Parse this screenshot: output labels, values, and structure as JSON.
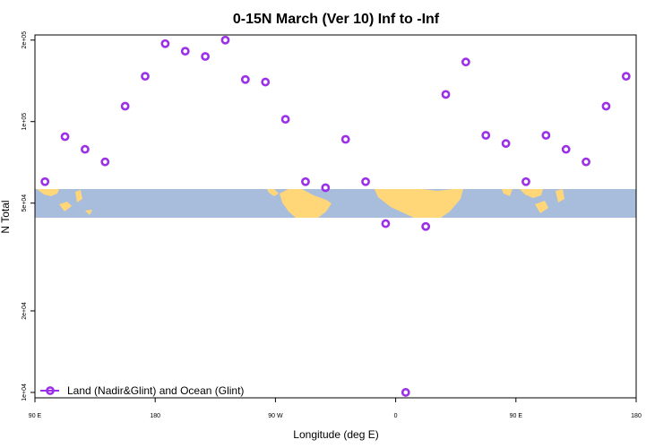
{
  "chart_data": {
    "type": "scatter",
    "title": "0-15N March (Ver 10)   Inf to -Inf",
    "xlabel": "Longitude (deg E)",
    "ylabel": "N Total",
    "xlim": [
      90,
      450
    ],
    "ylim_log10": [
      3.98,
      5.32
    ],
    "y_scale": "log",
    "x_ticks": [
      {
        "value": 90,
        "label": "90 E"
      },
      {
        "value": 162,
        "label": "180"
      },
      {
        "value": 234,
        "label": "90 W"
      },
      {
        "value": 306,
        "label": "0"
      },
      {
        "value": 378,
        "label": "90 E"
      },
      {
        "value": 450,
        "label": "180"
      }
    ],
    "y_ticks": [
      {
        "value": 10000,
        "label": "1e+04"
      },
      {
        "value": 20000,
        "label": "2e+04"
      },
      {
        "value": 50000,
        "label": "5e+04"
      },
      {
        "value": 100000,
        "label": "1e+05"
      },
      {
        "value": 200000,
        "label": "2e+05"
      }
    ],
    "background": "world map band (latitudes 0-15N)",
    "legend": {
      "position": "bottom-left",
      "entries": [
        "Land (Nadir&Glint) and Ocean (Glint)"
      ]
    },
    "series": [
      {
        "name": "Land (Nadir&Glint) and Ocean (Glint)",
        "color": "#9b30e8",
        "x": [
          96,
          108,
          120,
          132,
          144,
          156,
          168,
          180,
          192,
          204,
          216,
          228,
          240,
          252,
          264,
          276,
          288,
          300,
          312,
          324,
          336,
          348,
          360,
          372,
          384,
          396,
          408,
          420,
          432,
          444
        ],
        "y": [
          60000,
          88000,
          79000,
          71000,
          114000,
          147000,
          194000,
          182000,
          174000,
          200000,
          143000,
          140000,
          102000,
          60000,
          57000,
          86000,
          60000,
          42000,
          10000,
          41000,
          126000,
          166000,
          89000,
          83000,
          60000,
          89000,
          79000,
          71000,
          114000,
          147000
        ]
      }
    ]
  },
  "colors": {
    "points": "#9b30e8",
    "ocean": "#a8bcdc",
    "land": "#ffd778",
    "axis": "#000000"
  }
}
